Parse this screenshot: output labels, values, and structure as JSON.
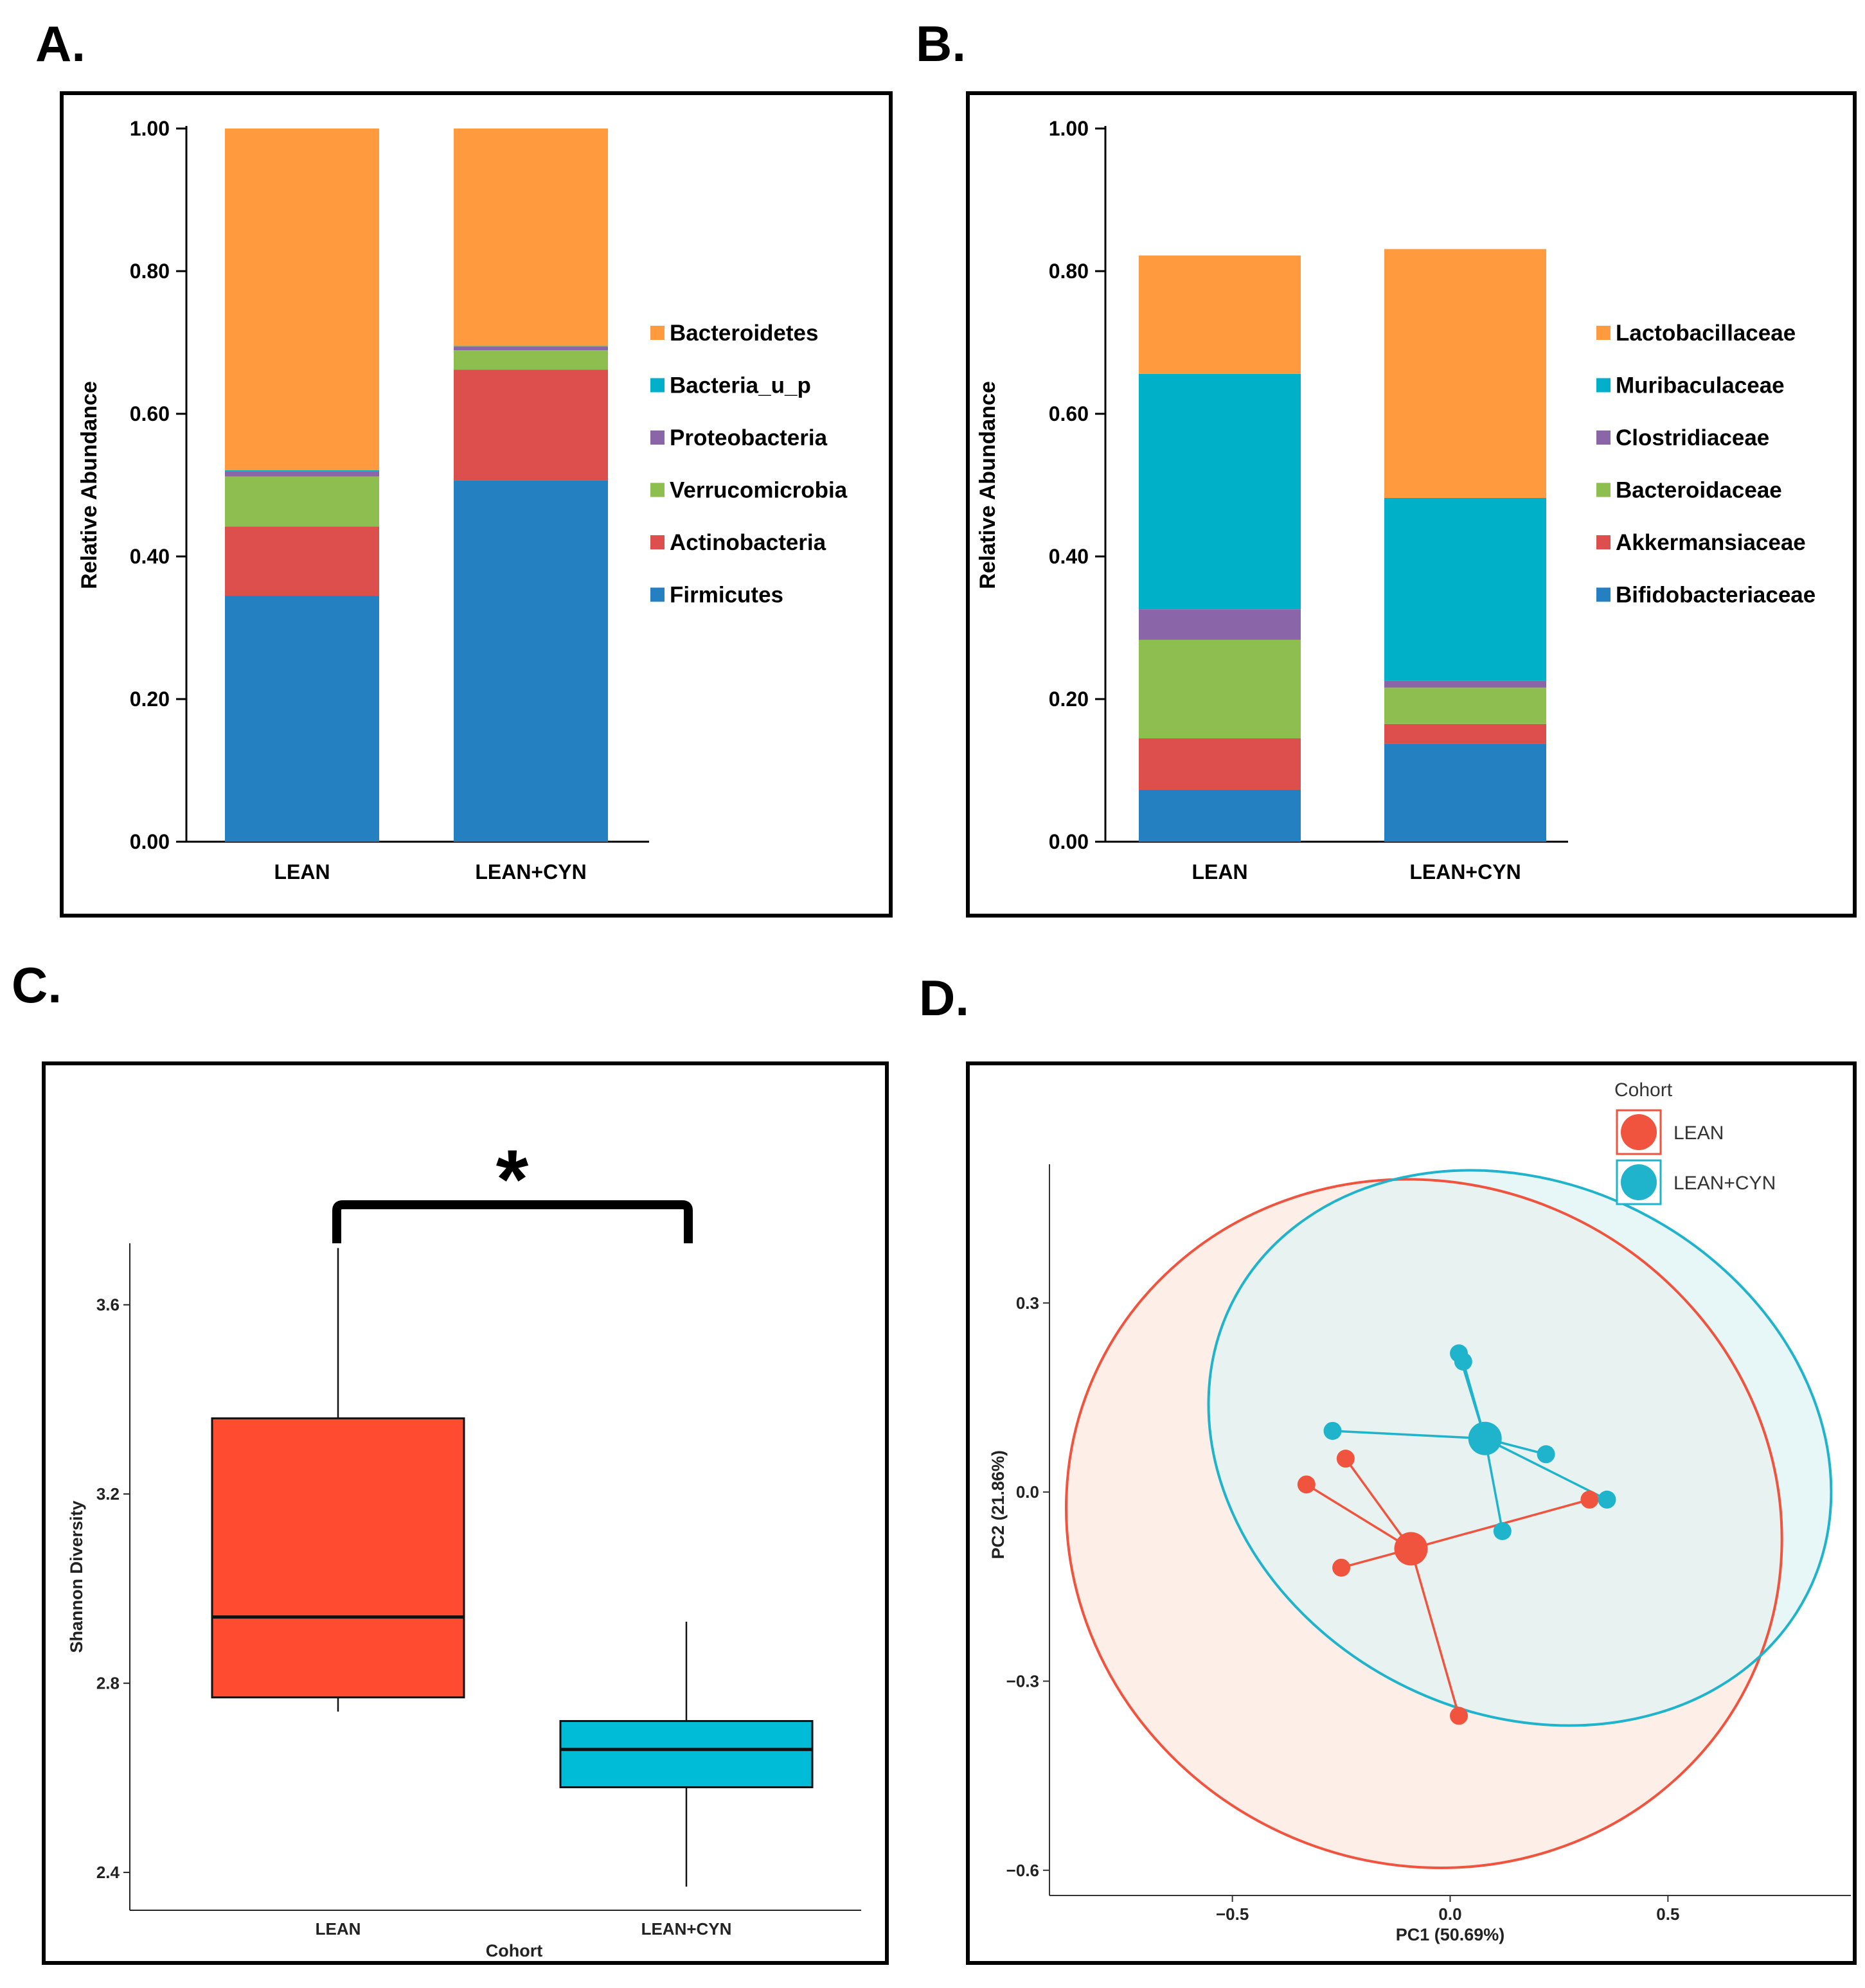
{
  "panels": {
    "a": {
      "letter": "A."
    },
    "b": {
      "letter": "B."
    },
    "c": {
      "letter": "C."
    },
    "d": {
      "letter": "D."
    }
  },
  "chart_data": [
    {
      "id": "A",
      "type": "bar",
      "stacked": true,
      "categories": [
        "LEAN",
        "LEAN+CYN"
      ],
      "ylabel": "Relative Abundance",
      "ylim": [
        0,
        1
      ],
      "yticks": [
        "0.00",
        "0.20",
        "0.40",
        "0.60",
        "0.80",
        "1.00"
      ],
      "ytick_values": [
        0,
        0.2,
        0.4,
        0.6,
        0.8,
        1.0
      ],
      "series": [
        {
          "name": "Firmicutes",
          "color": "#2480C1",
          "values": [
            0.345,
            0.507
          ]
        },
        {
          "name": "Actinobacteria",
          "color": "#DD4F4D",
          "values": [
            0.097,
            0.155
          ]
        },
        {
          "name": "Verrucomicrobia",
          "color": "#8DBE4F",
          "values": [
            0.07,
            0.027
          ]
        },
        {
          "name": "Proteobacteria",
          "color": "#8A66A8",
          "values": [
            0.007,
            0.005
          ]
        },
        {
          "name": "Bacteria_u_p",
          "color": "#00B0C8",
          "values": [
            0.002,
            0.001
          ]
        },
        {
          "name": "Bacteroidetes",
          "color": "#FF9A3E",
          "values": [
            0.479,
            0.305
          ]
        }
      ],
      "legend_order": [
        "Bacteroidetes",
        "Bacteria_u_p",
        "Proteobacteria",
        "Verrucomicrobia",
        "Actinobacteria",
        "Firmicutes"
      ],
      "legend": "right"
    },
    {
      "id": "B",
      "type": "bar",
      "stacked": true,
      "categories": [
        "LEAN",
        "LEAN+CYN"
      ],
      "ylabel": "Relative Abundance",
      "ylim": [
        0,
        1
      ],
      "yticks": [
        "0.00",
        "0.20",
        "0.40",
        "0.60",
        "0.80",
        "1.00"
      ],
      "ytick_values": [
        0,
        0.2,
        0.4,
        0.6,
        0.8,
        1.0
      ],
      "series": [
        {
          "name": "Bifidobacteriaceae",
          "color": "#2480C1",
          "values": [
            0.073,
            0.137
          ]
        },
        {
          "name": "Akkermansiaceae",
          "color": "#DD4F4D",
          "values": [
            0.072,
            0.028
          ]
        },
        {
          "name": "Bacteroidaceae",
          "color": "#8DBE4F",
          "values": [
            0.138,
            0.051
          ]
        },
        {
          "name": "Clostridiaceae",
          "color": "#8A66A8",
          "values": [
            0.043,
            0.01
          ]
        },
        {
          "name": "Muribaculaceae",
          "color": "#00B0C8",
          "values": [
            0.33,
            0.256
          ]
        },
        {
          "name": "Lactobacillaceae",
          "color": "#FF9A3E",
          "values": [
            0.166,
            0.349
          ]
        }
      ],
      "legend_order": [
        "Lactobacillaceae",
        "Muribaculaceae",
        "Clostridiaceae",
        "Bacteroidaceae",
        "Akkermansiaceae",
        "Bifidobacteriaceae"
      ],
      "legend": "right"
    },
    {
      "id": "C",
      "type": "box",
      "xlabel": "Cohort",
      "ylabel": "Shannon Diversity",
      "ylim": [
        2.32,
        3.73
      ],
      "yticks": [
        "2.4",
        "2.8",
        "3.2",
        "3.6"
      ],
      "ytick_values": [
        2.4,
        2.8,
        3.2,
        3.6
      ],
      "groups": [
        {
          "name": "LEAN",
          "color": "#FF4B2F",
          "whisker_low": 2.74,
          "q1": 2.77,
          "median": 2.94,
          "q3": 3.36,
          "whisker_high": 3.72
        },
        {
          "name": "LEAN+CYN",
          "color": "#00BCD6",
          "whisker_low": 2.37,
          "q1": 2.58,
          "median": 2.66,
          "q3": 2.72,
          "whisker_high": 2.93
        }
      ],
      "significance": "*"
    },
    {
      "id": "D",
      "type": "scatter",
      "subtype": "PCoA",
      "xlabel": "PC1 (50.69%)",
      "ylabel": "PC2 (21.86%)",
      "xlim": [
        -0.92,
        0.92
      ],
      "ylim": [
        -0.64,
        0.52
      ],
      "xticks": [
        "−0.5",
        "0.0",
        "0.5"
      ],
      "xtick_values": [
        -0.5,
        0.0,
        0.5
      ],
      "yticks": [
        "−0.6",
        "−0.3",
        "0.0",
        "0.3"
      ],
      "ytick_values": [
        -0.6,
        -0.3,
        0.0,
        0.3
      ],
      "legend_title": "Cohort",
      "legend": "top-right",
      "groups": [
        {
          "name": "LEAN",
          "color": "#F0533E",
          "fill": "#FDE8E0",
          "centroid": [
            -0.09,
            -0.09
          ],
          "points": [
            [
              -0.33,
              0.012
            ],
            [
              -0.24,
              0.053
            ],
            [
              -0.25,
              -0.12
            ],
            [
              0.32,
              -0.012
            ],
            [
              0.02,
              -0.355
            ]
          ],
          "ellipse": {
            "cx": -0.06,
            "cy": -0.05,
            "rx": 0.83,
            "ry": 0.54,
            "angle_deg": 25
          }
        },
        {
          "name": "LEAN+CYN",
          "color": "#1FB3CC",
          "fill": "#DFF3F4",
          "centroid": [
            0.08,
            0.085
          ],
          "points": [
            [
              0.02,
              0.22
            ],
            [
              0.03,
              0.207
            ],
            [
              -0.27,
              0.097
            ],
            [
              0.22,
              0.06
            ],
            [
              0.36,
              -0.012
            ],
            [
              0.12,
              -0.062
            ]
          ],
          "ellipse": {
            "cx": 0.16,
            "cy": 0.07,
            "rx": 0.74,
            "ry": 0.42,
            "angle_deg": 27
          }
        }
      ]
    }
  ]
}
